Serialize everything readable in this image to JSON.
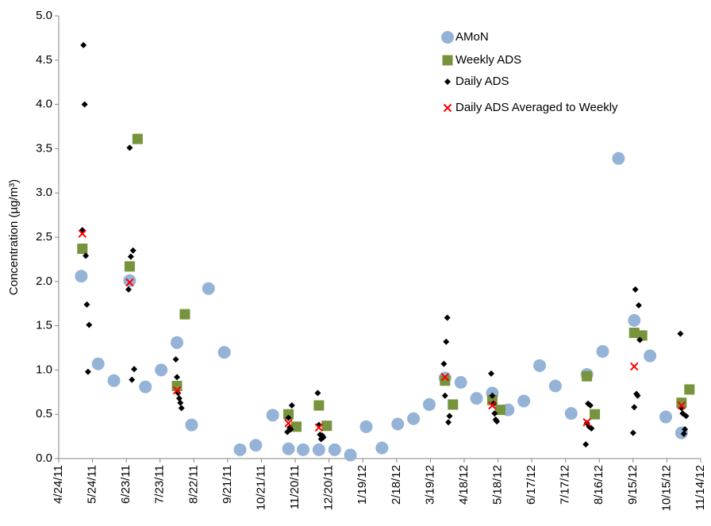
{
  "chart_data": {
    "type": "scatter",
    "y_label": "Concentration (µg/m³)",
    "xlim": [
      "2011-04-24",
      "2012-11-14"
    ],
    "xticks": [
      {
        "value": "2011-04-24",
        "label": "4/24/11"
      },
      {
        "value": "2011-05-24",
        "label": "5/24/11"
      },
      {
        "value": "2011-06-23",
        "label": "6/23/11"
      },
      {
        "value": "2011-07-23",
        "label": "7/23/11"
      },
      {
        "value": "2011-08-22",
        "label": "8/22/11"
      },
      {
        "value": "2011-09-21",
        "label": "9/21/11"
      },
      {
        "value": "2011-10-21",
        "label": "10/21/11"
      },
      {
        "value": "2011-11-20",
        "label": "11/20/11"
      },
      {
        "value": "2011-12-20",
        "label": "12/20/11"
      },
      {
        "value": "2012-01-19",
        "label": "1/19/12"
      },
      {
        "value": "2012-02-18",
        "label": "2/18/12"
      },
      {
        "value": "2012-03-19",
        "label": "3/19/12"
      },
      {
        "value": "2012-04-18",
        "label": "4/18/12"
      },
      {
        "value": "2012-05-18",
        "label": "5/18/12"
      },
      {
        "value": "2012-06-17",
        "label": "6/17/12"
      },
      {
        "value": "2012-07-17",
        "label": "7/17/12"
      },
      {
        "value": "2012-08-16",
        "label": "8/16/12"
      },
      {
        "value": "2012-09-15",
        "label": "9/15/12"
      },
      {
        "value": "2012-10-15",
        "label": "10/15/12"
      },
      {
        "value": "2012-11-14",
        "label": "11/14/12"
      }
    ],
    "ylim": [
      0,
      5
    ],
    "yticks": [
      {
        "value": 0,
        "label": "0.0"
      },
      {
        "value": 0.5,
        "label": "0.5"
      },
      {
        "value": 1,
        "label": "1.0"
      },
      {
        "value": 1.5,
        "label": "1.5"
      },
      {
        "value": 2,
        "label": "2.0"
      },
      {
        "value": 2.5,
        "label": "2.5"
      },
      {
        "value": 3,
        "label": "3.0"
      },
      {
        "value": 3.5,
        "label": "3.5"
      },
      {
        "value": 4,
        "label": "4.0"
      },
      {
        "value": 4.5,
        "label": "4.5"
      },
      {
        "value": 5,
        "label": "5.0"
      }
    ],
    "grid": false,
    "legend": "upper-right",
    "series": [
      {
        "name": "AMoN",
        "color": "#95b3d7",
        "marker": "circle",
        "x": [
          "2011-05-14",
          "2011-05-29",
          "2011-06-12",
          "2011-06-26",
          "2011-07-10",
          "2011-07-24",
          "2011-08-07",
          "2011-08-20",
          "2011-09-04",
          "2011-09-18",
          "2011-10-02",
          "2011-10-16",
          "2011-10-31",
          "2011-11-14",
          "2011-11-27",
          "2011-12-11",
          "2011-12-25",
          "2012-01-08",
          "2012-01-22",
          "2012-02-05",
          "2012-02-19",
          "2012-03-04",
          "2012-03-18",
          "2012-04-01",
          "2012-04-15",
          "2012-04-29",
          "2012-05-13",
          "2012-05-27",
          "2012-06-10",
          "2012-06-24",
          "2012-07-08",
          "2012-07-22",
          "2012-08-05",
          "2012-08-19",
          "2012-09-02",
          "2012-09-16",
          "2012-09-30",
          "2012-10-14",
          "2012-10-28"
        ],
        "values": [
          2.06,
          1.07,
          0.88,
          2.01,
          0.81,
          1.0,
          1.31,
          0.38,
          1.92,
          1.2,
          0.1,
          0.15,
          0.49,
          0.11,
          0.1,
          0.1,
          0.1,
          0.04,
          0.36,
          0.12,
          0.39,
          0.45,
          0.61,
          0.91,
          0.86,
          0.68,
          0.74,
          0.55,
          0.65,
          1.05,
          0.82,
          0.51,
          0.95,
          1.21,
          3.39,
          1.56,
          1.16,
          0.47,
          0.29
        ]
      },
      {
        "name": "Weekly ADS",
        "color": "#77933c",
        "marker": "square",
        "x": [
          "2011-05-15",
          "2011-06-26",
          "2011-07-03",
          "2011-08-07",
          "2011-08-14",
          "2011-11-14",
          "2011-11-21",
          "2011-12-11",
          "2011-12-18",
          "2012-04-01",
          "2012-04-08",
          "2012-05-13",
          "2012-05-20",
          "2012-08-05",
          "2012-08-12",
          "2012-09-16",
          "2012-09-23",
          "2012-10-28",
          "2012-11-04"
        ],
        "values": [
          2.37,
          2.17,
          3.61,
          0.82,
          1.63,
          0.5,
          0.36,
          0.6,
          0.37,
          0.88,
          0.61,
          0.66,
          0.55,
          0.93,
          0.5,
          1.42,
          1.39,
          0.63,
          0.78
        ]
      },
      {
        "name": "Daily ADS",
        "color": "#000000",
        "marker": "diamond",
        "x": [
          "2011-05-15",
          "2011-05-16",
          "2011-05-17",
          "2011-05-18",
          "2011-05-19",
          "2011-05-20",
          "2011-05-21",
          "2011-06-25",
          "2011-06-26",
          "2011-06-27",
          "2011-06-28",
          "2011-06-29",
          "2011-06-30",
          "2011-08-06",
          "2011-08-07",
          "2011-08-08",
          "2011-08-09",
          "2011-08-10",
          "2011-08-11",
          "2011-11-13",
          "2011-11-14",
          "2011-11-15",
          "2011-11-16",
          "2011-11-17",
          "2011-12-10",
          "2011-12-11",
          "2011-12-12",
          "2011-12-13",
          "2011-12-14",
          "2011-12-15",
          "2012-03-31",
          "2012-04-01",
          "2012-04-02",
          "2012-04-03",
          "2012-04-04",
          "2012-04-05",
          "2012-05-12",
          "2012-05-13",
          "2012-05-14",
          "2012-05-15",
          "2012-05-16",
          "2012-05-17",
          "2012-08-04",
          "2012-08-05",
          "2012-08-06",
          "2012-08-07",
          "2012-08-08",
          "2012-08-09",
          "2012-09-15",
          "2012-09-16",
          "2012-09-17",
          "2012-09-18",
          "2012-09-19",
          "2012-09-20",
          "2012-09-21",
          "2012-10-27",
          "2012-10-28",
          "2012-10-29",
          "2012-10-30",
          "2012-10-31",
          "2012-11-01"
        ],
        "values": [
          2.58,
          4.67,
          4.0,
          2.29,
          1.74,
          0.98,
          1.51,
          1.91,
          3.51,
          2.28,
          0.89,
          2.35,
          1.01,
          1.12,
          0.92,
          0.74,
          0.68,
          0.63,
          0.57,
          0.3,
          0.46,
          0.35,
          0.33,
          0.6,
          0.74,
          0.38,
          0.27,
          0.22,
          0.26,
          0.24,
          1.07,
          0.71,
          1.32,
          1.59,
          0.41,
          0.48,
          0.96,
          0.71,
          0.62,
          0.51,
          0.44,
          0.42,
          0.16,
          0.4,
          0.62,
          0.36,
          0.6,
          0.34,
          0.29,
          0.58,
          1.91,
          0.73,
          0.71,
          1.73,
          1.34,
          1.41,
          0.57,
          0.51,
          0.28,
          0.33,
          0.48
        ]
      },
      {
        "name": "Daily ADS Averaged to Weekly",
        "color": "#ff0000",
        "marker": "cross",
        "x": [
          "2011-05-15",
          "2011-06-26",
          "2011-08-07",
          "2011-11-14",
          "2011-12-11",
          "2012-04-01",
          "2012-05-13",
          "2012-08-05",
          "2012-09-16",
          "2012-10-28"
        ],
        "values": [
          2.54,
          1.99,
          0.77,
          0.4,
          0.35,
          0.92,
          0.6,
          0.41,
          1.04,
          0.6
        ]
      }
    ]
  }
}
